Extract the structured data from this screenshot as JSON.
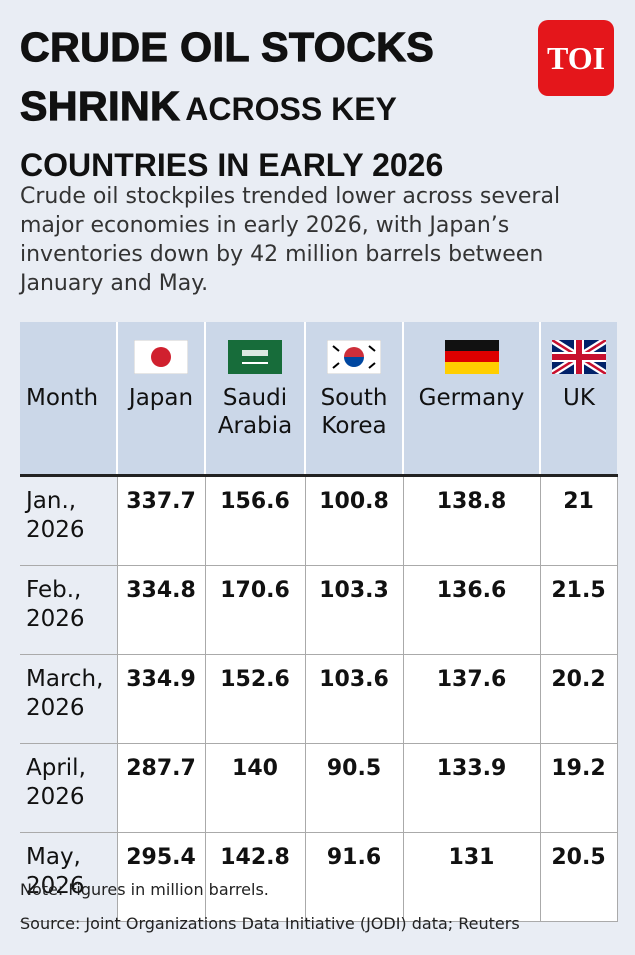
{
  "logo": "TOI",
  "header": {
    "title_bold": "CRUDE OIL STOCKS SHRINK",
    "title_rest": "ACROSS KEY COUNTRIES IN EARLY 2026",
    "subtitle": "Crude oil stockpiles trended lower across several major economies in early 2026, with Japan’s inventories down by 42 million barrels between January and May."
  },
  "table": {
    "columns": [
      "Month",
      "Japan",
      "Saudi Arabia",
      "South Korea",
      "Germany",
      "UK"
    ],
    "rows": [
      [
        "Jan., 2026",
        337.7,
        156.6,
        100.8,
        138.8,
        21
      ],
      [
        "Feb., 2026",
        334.8,
        170.6,
        103.3,
        136.6,
        21.5
      ],
      [
        "March, 2026",
        334.9,
        152.6,
        103.6,
        137.6,
        20.2
      ],
      [
        "April, 2026",
        287.7,
        140,
        90.5,
        133.9,
        19.2
      ],
      [
        "May, 2026",
        295.4,
        142.8,
        91.6,
        131,
        20.5
      ]
    ]
  },
  "footer": {
    "note": "Note: Figures in million barrels.",
    "source": "Source: Joint Organizations Data Initiative (JODI) data; Reuters"
  }
}
